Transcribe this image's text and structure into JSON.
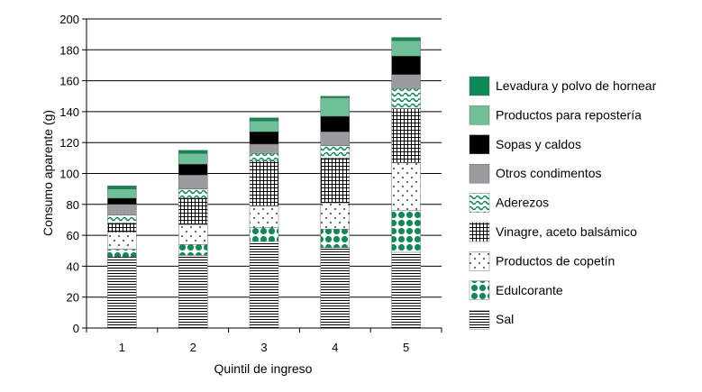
{
  "chart_data": {
    "type": "bar",
    "stacked": true,
    "categories": [
      "1",
      "2",
      "3",
      "4",
      "5"
    ],
    "xlabel": "Quintil de ingreso",
    "ylabel": "Consumo aparente (g)",
    "ylim": [
      0,
      200
    ],
    "yticks": [
      0,
      20,
      40,
      60,
      80,
      100,
      120,
      140,
      160,
      180,
      200
    ],
    "grid": true,
    "legend_position": "right",
    "series": [
      {
        "name": "Sal",
        "values": [
          46,
          47,
          56,
          52,
          49
        ],
        "pattern": "hlines"
      },
      {
        "name": "Edulcorante",
        "values": [
          5,
          7,
          9,
          12,
          27
        ],
        "pattern": "dots-green"
      },
      {
        "name": "Productos de copetín",
        "values": [
          11,
          13,
          14,
          17,
          31
        ],
        "pattern": "dots-small"
      },
      {
        "name": "Vinagre, aceto balsámico",
        "values": [
          6,
          17,
          29,
          29,
          35
        ],
        "pattern": "grid"
      },
      {
        "name": "Aderezos",
        "values": [
          5,
          6,
          5,
          8,
          13
        ],
        "pattern": "waves"
      },
      {
        "name": "Otros condimentos",
        "values": [
          7,
          9,
          6,
          9,
          9
        ],
        "pattern": "gray"
      },
      {
        "name": "Sopas y caldos",
        "values": [
          4,
          7,
          8,
          10,
          12
        ],
        "pattern": "black"
      },
      {
        "name": "Productos para repostería",
        "values": [
          6,
          7,
          7,
          12,
          10
        ],
        "pattern": "lightgreen"
      },
      {
        "name": "Levadura y polvo de hornear",
        "values": [
          2,
          2,
          2,
          1,
          2
        ],
        "pattern": "darkgreen"
      }
    ],
    "colors": {
      "darkgreen": "#0f8a56",
      "lightgreen": "#6fbf98",
      "black": "#000000",
      "gray": "#9b9b9f",
      "green_fill": "#0f8a56",
      "grid": "#000000"
    }
  }
}
